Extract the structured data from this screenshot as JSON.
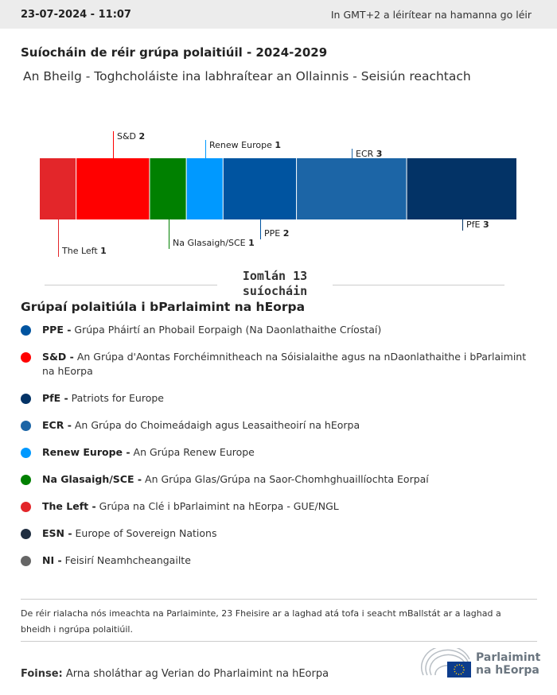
{
  "header": {
    "timestamp": "23-07-2024 - 11:07",
    "timezone_note": "In GMT+2 a léirítear na hamanna go léir"
  },
  "title": "Suíocháin de réir grúpa polaitiúil - 2024-2029",
  "subtitle": "An Bheilg - Toghcholáiste ina labhraítear an Ollainnis - Seisiún reachtach",
  "chart_data": {
    "type": "bar",
    "orientation": "stacked-horizontal",
    "total_label": "Iomlán 13 suíocháin",
    "total": 13,
    "segments": [
      {
        "name": "The Left",
        "value": 1,
        "color": "#e3262a",
        "label_pos": "below"
      },
      {
        "name": "S&D",
        "value": 2,
        "color": "#ff0000",
        "label_pos": "above"
      },
      {
        "name": "Na Glasaigh/SCE",
        "value": 1,
        "color": "#008000",
        "label_pos": "below"
      },
      {
        "name": "Renew Europe",
        "value": 1,
        "color": "#0099ff",
        "label_pos": "above"
      },
      {
        "name": "PPE",
        "value": 2,
        "color": "#0054a0",
        "label_pos": "below"
      },
      {
        "name": "ECR",
        "value": 3,
        "color": "#1c65a6",
        "label_pos": "above"
      },
      {
        "name": "PfE",
        "value": 3,
        "color": "#033366",
        "label_pos": "below"
      }
    ]
  },
  "legend": {
    "title": "Grúpaí polaitiúla i bParlaimint na hEorpa",
    "items": [
      {
        "abbr": "PPE -",
        "desc": "Grúpa Pháirtí an Phobail Eorpaigh (Na Daonlathaithe Críostaí)",
        "color": "#0054a0"
      },
      {
        "abbr": "S&D -",
        "desc": "An Grúpa d'Aontas Forchéimnitheach na Sóisialaithe agus na nDaonlathaithe i bParlaimint na hEorpa",
        "color": "#ff0000"
      },
      {
        "abbr": "PfE -",
        "desc": "Patriots for Europe",
        "color": "#033366"
      },
      {
        "abbr": "ECR -",
        "desc": "An Grúpa do Choimeádaigh agus Leasaitheoirí na hEorpa",
        "color": "#1c65a6"
      },
      {
        "abbr": "Renew Europe -",
        "desc": "An Grúpa Renew Europe",
        "color": "#0099ff"
      },
      {
        "abbr": "Na Glasaigh/SCE -",
        "desc": "An Grúpa Glas/Grúpa na Saor-Chomhghuaillíochta Eorpaí",
        "color": "#008000"
      },
      {
        "abbr": "The Left -",
        "desc": "Grúpa na Clé i bParlaimint na hEorpa - GUE/NGL",
        "color": "#e3262a"
      },
      {
        "abbr": "ESN -",
        "desc": "Europe of Sovereign Nations",
        "color": "#1f2e40"
      },
      {
        "abbr": "NI -",
        "desc": "Feisirí Neamhcheangailte",
        "color": "#666666"
      }
    ]
  },
  "note": "De réir rialacha nós imeachta na Parlaiminte, 23 Fheisire ar a laghad atá tofa i seacht mBallstát ar a laghad a bheidh i ngrúpa polaitiúil.",
  "source": {
    "label": "Foinse:",
    "text": "Arna sholáthar ag Verian do Pharlaimint na hEorpa"
  },
  "logo": {
    "line1": "Parlaimint",
    "line2": "na hEorpa"
  }
}
